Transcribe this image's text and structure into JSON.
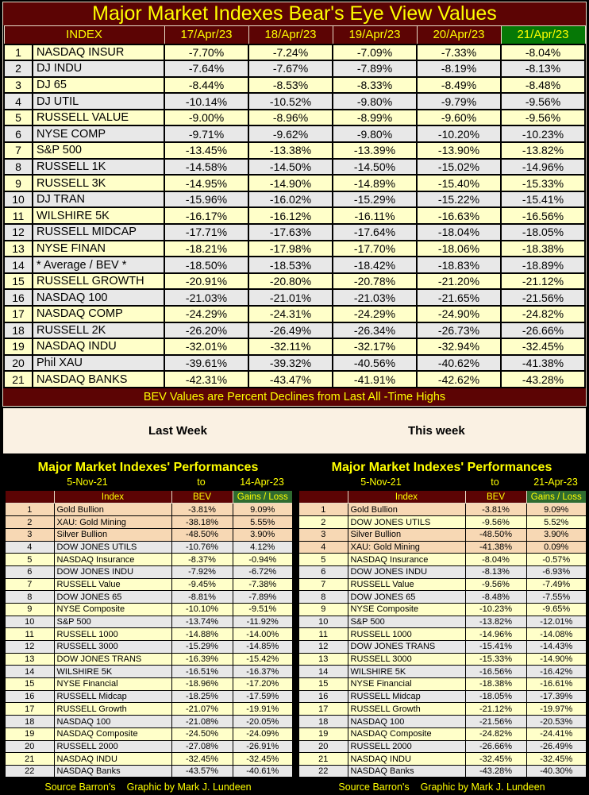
{
  "title": "Major Market Indexes Bear's Eye View Values",
  "banner": "BEV Values are Percent Declines from Last All -Time Highs",
  "week_labels": {
    "left": "Last Week",
    "right": "This week"
  },
  "footer": {
    "source": "Source Barron's",
    "credit": "Graphic by Mark J. Lundeen"
  },
  "colors": {
    "header_maroon": "#5C0404",
    "highlight_green": "#067806",
    "gains_header_green": "#2F6B2F",
    "title_yellow": "#FFFF00",
    "row_yellow": "#FFFFC9",
    "row_gray": "#E8E8E8",
    "row_peach": "#F7D8B4",
    "cream_band": "#FAF1E3",
    "background": "#000000"
  },
  "chart_data": [
    {
      "type": "table",
      "title": "Major Market Indexes Bear's Eye View Values",
      "columns": [
        "INDEX",
        "17/Apr/23",
        "18/Apr/23",
        "19/Apr/23",
        "20/Apr/23",
        "21/Apr/23"
      ],
      "highlighted_column": "21/Apr/23",
      "rows": [
        {
          "num": "1",
          "name": "NASDAQ INSUR",
          "values": [
            "-7.70%",
            "-7.24%",
            "-7.09%",
            "-7.33%",
            "-8.04%"
          ]
        },
        {
          "num": "2",
          "name": "DJ  INDU",
          "values": [
            "-7.64%",
            "-7.67%",
            "-7.89%",
            "-8.19%",
            "-8.13%"
          ]
        },
        {
          "num": "3",
          "name": "DJ  65",
          "values": [
            "-8.44%",
            "-8.53%",
            "-8.33%",
            "-8.49%",
            "-8.48%"
          ]
        },
        {
          "num": "4",
          "name": "DJ  UTIL",
          "values": [
            "-10.14%",
            "-10.52%",
            "-9.80%",
            "-9.79%",
            "-9.56%"
          ]
        },
        {
          "num": "5",
          "name": "RUSSELL VALUE",
          "values": [
            "-9.00%",
            "-8.96%",
            "-8.99%",
            "-9.60%",
            "-9.56%"
          ]
        },
        {
          "num": "6",
          "name": "NYSE COMP",
          "values": [
            "-9.71%",
            "-9.62%",
            "-9.80%",
            "-10.20%",
            "-10.23%"
          ]
        },
        {
          "num": "7",
          "name": "S&P 500",
          "values": [
            "-13.45%",
            "-13.38%",
            "-13.39%",
            "-13.90%",
            "-13.82%"
          ]
        },
        {
          "num": "8",
          "name": "RUSSELL 1K",
          "values": [
            "-14.58%",
            "-14.50%",
            "-14.50%",
            "-15.02%",
            "-14.96%"
          ]
        },
        {
          "num": "9",
          "name": "RUSSELL 3K",
          "values": [
            "-14.95%",
            "-14.90%",
            "-14.89%",
            "-15.40%",
            "-15.33%"
          ]
        },
        {
          "num": "10",
          "name": "DJ  TRAN",
          "values": [
            "-15.96%",
            "-16.02%",
            "-15.29%",
            "-15.22%",
            "-15.41%"
          ]
        },
        {
          "num": "11",
          "name": "WILSHIRE 5K",
          "values": [
            "-16.17%",
            "-16.12%",
            "-16.11%",
            "-16.63%",
            "-16.56%"
          ]
        },
        {
          "num": "12",
          "name": "RUSSELL MIDCAP",
          "values": [
            "-17.71%",
            "-17.63%",
            "-17.64%",
            "-18.04%",
            "-18.05%"
          ]
        },
        {
          "num": "13",
          "name": "NYSE FINAN",
          "values": [
            "-18.21%",
            "-17.98%",
            "-17.70%",
            "-18.06%",
            "-18.38%"
          ]
        },
        {
          "num": "14",
          "name": "* Average / BEV *",
          "values": [
            "-18.50%",
            "-18.53%",
            "-18.42%",
            "-18.83%",
            "-18.89%"
          ]
        },
        {
          "num": "15",
          "name": "RUSSELL GROWTH",
          "values": [
            "-20.91%",
            "-20.80%",
            "-20.78%",
            "-21.20%",
            "-21.12%"
          ]
        },
        {
          "num": "16",
          "name": "NASDAQ 100",
          "values": [
            "-21.03%",
            "-21.01%",
            "-21.03%",
            "-21.65%",
            "-21.56%"
          ]
        },
        {
          "num": "17",
          "name": "NASDAQ COMP",
          "values": [
            "-24.29%",
            "-24.31%",
            "-24.29%",
            "-24.90%",
            "-24.82%"
          ]
        },
        {
          "num": "18",
          "name": "RUSSELL 2K",
          "values": [
            "-26.20%",
            "-26.49%",
            "-26.34%",
            "-26.73%",
            "-26.66%"
          ]
        },
        {
          "num": "19",
          "name": "NASDAQ INDU",
          "values": [
            "-32.01%",
            "-32.11%",
            "-32.17%",
            "-32.94%",
            "-32.45%"
          ]
        },
        {
          "num": "20",
          "name": "Phil XAU",
          "values": [
            "-39.61%",
            "-39.32%",
            "-40.56%",
            "-40.62%",
            "-41.38%"
          ]
        },
        {
          "num": "21",
          "name": "NASDAQ BANKS",
          "values": [
            "-42.31%",
            "-43.47%",
            "-41.91%",
            "-42.62%",
            "-43.28%"
          ]
        }
      ]
    },
    {
      "type": "table",
      "title": "Major Market Indexes' Performances",
      "period": {
        "from": "5-Nov-21",
        "word": "to",
        "to": "14-Apr-23"
      },
      "columns": [
        "Index",
        "BEV",
        "Gains / Loss"
      ],
      "rows": [
        {
          "num": "1",
          "name": "Gold Bullion",
          "bev": "-3.81%",
          "gain": "9.09%",
          "tone": "peach"
        },
        {
          "num": "2",
          "name": "XAU: Gold Mining",
          "bev": "-38.18%",
          "gain": "5.55%",
          "tone": "peach"
        },
        {
          "num": "3",
          "name": "Silver Bullion",
          "bev": "-48.50%",
          "gain": "3.90%",
          "tone": "peach"
        },
        {
          "num": "4",
          "name": "DOW JONES UTILS",
          "bev": "-10.76%",
          "gain": "4.12%",
          "tone": "gray"
        },
        {
          "num": "5",
          "name": "NASDAQ Insurance",
          "bev": "-8.37%",
          "gain": "-0.94%",
          "tone": "yellow"
        },
        {
          "num": "6",
          "name": "DOW JONES INDU",
          "bev": "-7.92%",
          "gain": "-6.72%",
          "tone": "gray"
        },
        {
          "num": "7",
          "name": "RUSSELL Value",
          "bev": "-9.45%",
          "gain": "-7.38%",
          "tone": "yellow"
        },
        {
          "num": "8",
          "name": "DOW JONES 65",
          "bev": "-8.81%",
          "gain": "-7.89%",
          "tone": "gray"
        },
        {
          "num": "9",
          "name": "NYSE Composite",
          "bev": "-10.10%",
          "gain": "-9.51%",
          "tone": "yellow"
        },
        {
          "num": "10",
          "name": "S&P 500",
          "bev": "-13.74%",
          "gain": "-11.92%",
          "tone": "gray"
        },
        {
          "num": "11",
          "name": "RUSSELL 1000",
          "bev": "-14.88%",
          "gain": "-14.00%",
          "tone": "yellow"
        },
        {
          "num": "12",
          "name": "RUSSELL 3000",
          "bev": "-15.29%",
          "gain": "-14.85%",
          "tone": "gray"
        },
        {
          "num": "13",
          "name": "DOW JONES TRANS",
          "bev": "-16.39%",
          "gain": "-15.42%",
          "tone": "yellow"
        },
        {
          "num": "14",
          "name": "WILSHIRE 5K",
          "bev": "-16.51%",
          "gain": "-16.37%",
          "tone": "gray"
        },
        {
          "num": "15",
          "name": "NYSE Financial",
          "bev": "-18.96%",
          "gain": "-17.20%",
          "tone": "yellow"
        },
        {
          "num": "16",
          "name": "RUSSELL Midcap",
          "bev": "-18.25%",
          "gain": "-17.59%",
          "tone": "gray"
        },
        {
          "num": "17",
          "name": "RUSSELL Growth",
          "bev": "-21.07%",
          "gain": "-19.91%",
          "tone": "yellow"
        },
        {
          "num": "18",
          "name": "NASDAQ 100",
          "bev": "-21.08%",
          "gain": "-20.05%",
          "tone": "gray"
        },
        {
          "num": "19",
          "name": "NASDAQ Composite",
          "bev": "-24.50%",
          "gain": "-24.09%",
          "tone": "yellow"
        },
        {
          "num": "20",
          "name": "RUSSELL 2000",
          "bev": "-27.08%",
          "gain": "-26.91%",
          "tone": "gray"
        },
        {
          "num": "21",
          "name": "NASDAQ INDU",
          "bev": "-32.45%",
          "gain": "-32.45%",
          "tone": "yellow"
        },
        {
          "num": "22",
          "name": "NASDAQ Banks",
          "bev": "-43.57%",
          "gain": "-40.61%",
          "tone": "gray"
        }
      ]
    },
    {
      "type": "table",
      "title": "Major Market Indexes' Performances",
      "period": {
        "from": "5-Nov-21",
        "word": "to",
        "to": "21-Apr-23"
      },
      "columns": [
        "Index",
        "BEV",
        "Gains / Loss"
      ],
      "rows": [
        {
          "num": "1",
          "name": "Gold Bullion",
          "bev": "-3.81%",
          "gain": "9.09%",
          "tone": "peach"
        },
        {
          "num": "2",
          "name": "DOW JONES UTILS",
          "bev": "-9.56%",
          "gain": "5.52%",
          "tone": "yellow"
        },
        {
          "num": "3",
          "name": "Silver Bullion",
          "bev": "-48.50%",
          "gain": "3.90%",
          "tone": "peach"
        },
        {
          "num": "4",
          "name": "XAU: Gold Mining",
          "bev": "-41.38%",
          "gain": "0.09%",
          "tone": "peach"
        },
        {
          "num": "5",
          "name": "NASDAQ Insurance",
          "bev": "-8.04%",
          "gain": "-0.57%",
          "tone": "yellow"
        },
        {
          "num": "6",
          "name": "DOW JONES INDU",
          "bev": "-8.13%",
          "gain": "-6.93%",
          "tone": "gray"
        },
        {
          "num": "7",
          "name": "RUSSELL Value",
          "bev": "-9.56%",
          "gain": "-7.49%",
          "tone": "yellow"
        },
        {
          "num": "8",
          "name": "DOW JONES 65",
          "bev": "-8.48%",
          "gain": "-7.55%",
          "tone": "gray"
        },
        {
          "num": "9",
          "name": "NYSE Composite",
          "bev": "-10.23%",
          "gain": "-9.65%",
          "tone": "yellow"
        },
        {
          "num": "10",
          "name": "S&P 500",
          "bev": "-13.82%",
          "gain": "-12.01%",
          "tone": "gray"
        },
        {
          "num": "11",
          "name": "RUSSELL 1000",
          "bev": "-14.96%",
          "gain": "-14.08%",
          "tone": "yellow"
        },
        {
          "num": "12",
          "name": "DOW JONES TRANS",
          "bev": "-15.41%",
          "gain": "-14.43%",
          "tone": "gray"
        },
        {
          "num": "13",
          "name": "RUSSELL 3000",
          "bev": "-15.33%",
          "gain": "-14.90%",
          "tone": "yellow"
        },
        {
          "num": "14",
          "name": "WILSHIRE 5K",
          "bev": "-16.56%",
          "gain": "-16.42%",
          "tone": "gray"
        },
        {
          "num": "15",
          "name": "NYSE Financial",
          "bev": "-18.38%",
          "gain": "-16.61%",
          "tone": "yellow"
        },
        {
          "num": "16",
          "name": "RUSSELL Midcap",
          "bev": "-18.05%",
          "gain": "-17.39%",
          "tone": "gray"
        },
        {
          "num": "17",
          "name": "RUSSELL Growth",
          "bev": "-21.12%",
          "gain": "-19.97%",
          "tone": "yellow"
        },
        {
          "num": "18",
          "name": "NASDAQ 100",
          "bev": "-21.56%",
          "gain": "-20.53%",
          "tone": "gray"
        },
        {
          "num": "19",
          "name": "NASDAQ Composite",
          "bev": "-24.82%",
          "gain": "-24.41%",
          "tone": "yellow"
        },
        {
          "num": "20",
          "name": "RUSSELL 2000",
          "bev": "-26.66%",
          "gain": "-26.49%",
          "tone": "gray"
        },
        {
          "num": "21",
          "name": "NASDAQ INDU",
          "bev": "-32.45%",
          "gain": "-32.45%",
          "tone": "yellow"
        },
        {
          "num": "22",
          "name": "NASDAQ Banks",
          "bev": "-43.28%",
          "gain": "-40.30%",
          "tone": "gray"
        }
      ]
    }
  ]
}
